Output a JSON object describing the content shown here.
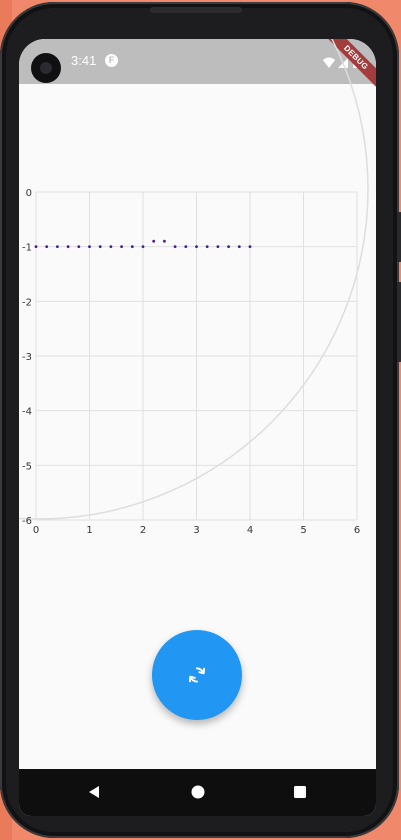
{
  "status_bar": {
    "time": "3:41",
    "app_icon_letter": "F",
    "icons": [
      "wifi-icon",
      "signal-icon",
      "battery-icon"
    ]
  },
  "debug_banner": {
    "label": "DEBUG"
  },
  "chart_data": {
    "type": "scatter",
    "title": "",
    "xlabel": "",
    "ylabel": "",
    "xlim": [
      0,
      6
    ],
    "ylim": [
      -6,
      0
    ],
    "grid": true,
    "x_ticks": [
      "0",
      "1",
      "2",
      "3",
      "4",
      "5",
      "6"
    ],
    "y_ticks": [
      "0",
      "-1",
      "-2",
      "-3",
      "-4",
      "-5",
      "-6"
    ],
    "series": [
      {
        "color": "#4b1b8a",
        "points": [
          [
            0.0,
            -1.0
          ],
          [
            0.2,
            -1.0
          ],
          [
            0.4,
            -1.0
          ],
          [
            0.6,
            -1.0
          ],
          [
            0.8,
            -1.0
          ],
          [
            1.0,
            -1.0
          ],
          [
            1.2,
            -1.0
          ],
          [
            1.4,
            -1.0
          ],
          [
            1.6,
            -1.0
          ],
          [
            1.8,
            -1.0
          ],
          [
            2.0,
            -1.0
          ],
          [
            2.2,
            -0.9
          ],
          [
            2.4,
            -0.9
          ],
          [
            2.6,
            -1.0
          ],
          [
            2.8,
            -1.0
          ],
          [
            3.0,
            -1.0
          ],
          [
            3.2,
            -1.0
          ],
          [
            3.4,
            -1.0
          ],
          [
            3.6,
            -1.0
          ],
          [
            3.8,
            -1.0
          ],
          [
            4.0,
            -1.0
          ]
        ]
      }
    ]
  },
  "fab": {
    "icon": "refresh-icon",
    "color": "#2196f3"
  },
  "nav_bar": {
    "buttons": [
      "back-icon",
      "home-icon",
      "recents-icon"
    ]
  }
}
